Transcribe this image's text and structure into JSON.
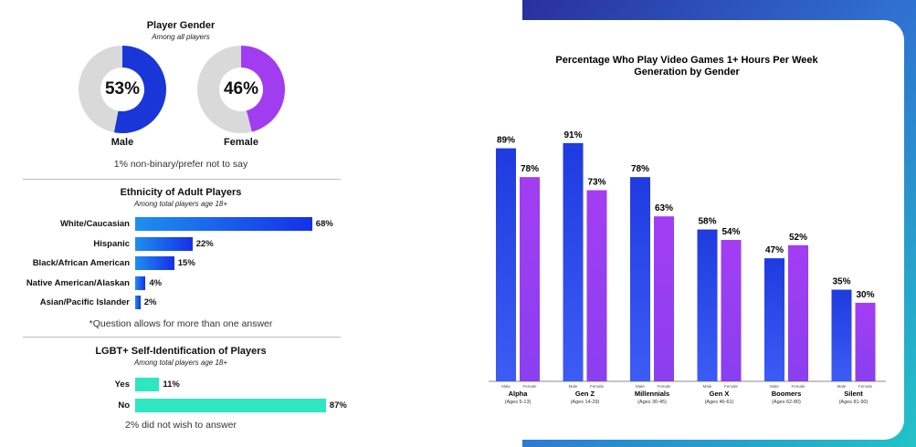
{
  "colors": {
    "male_blue": "#1a36d9",
    "female_purple": "#a23cf0",
    "donut_gray": "#d9d9d9",
    "ethnicity_blue": "#1e8ff0",
    "lgbt_teal": "#2ee6c2"
  },
  "gender": {
    "title": "Player Gender",
    "subtitle": "Among all players",
    "male": {
      "value": 53,
      "label_pct": "53%",
      "label": "Male"
    },
    "female": {
      "value": 46,
      "label_pct": "46%",
      "label": "Female"
    },
    "note": "1% non-binary/prefer not to say"
  },
  "ethnicity": {
    "title": "Ethnicity of Adult Players",
    "subtitle": "Among total players age 18+",
    "rows": [
      {
        "label": "White/Caucasian",
        "value": 68,
        "label_pct": "68%"
      },
      {
        "label": "Hispanic",
        "value": 22,
        "label_pct": "22%"
      },
      {
        "label": "Black/African American",
        "value": 15,
        "label_pct": "15%"
      },
      {
        "label": "Native American/Alaskan",
        "value": 4,
        "label_pct": "4%"
      },
      {
        "label": "Asian/Pacific Islander",
        "value": 2,
        "label_pct": "2%"
      }
    ],
    "note": "*Question allows for more than one answer"
  },
  "lgbt": {
    "title": "LGBT+ Self-Identification of Players",
    "subtitle": "Among total players age 18+",
    "rows": [
      {
        "label": "Yes",
        "value": 11,
        "label_pct": "11%"
      },
      {
        "label": "No",
        "value": 87,
        "label_pct": "87%"
      }
    ],
    "note": "2% did not wish to answer"
  },
  "chart_data": {
    "type": "bar",
    "title": "Percentage Who Play Video Games 1+ Hours Per Week",
    "subtitle": "Generation by Gender",
    "ylim": [
      0,
      100
    ],
    "categories": [
      "Alpha",
      "Gen Z",
      "Millennials",
      "Gen X",
      "Boomers",
      "Silent"
    ],
    "category_ages": [
      "(Ages 5-13)",
      "(Ages 14-29)",
      "(Ages 30-45)",
      "(Ages 46-61)",
      "(Ages 62-80)",
      "(Ages 81-90)"
    ],
    "series": [
      {
        "name": "Male",
        "values": [
          89,
          91,
          78,
          58,
          47,
          35
        ]
      },
      {
        "name": "Female",
        "values": [
          78,
          73,
          63,
          54,
          52,
          30
        ]
      }
    ],
    "value_labels": {
      "Male": [
        "89%",
        "91%",
        "78%",
        "58%",
        "47%",
        "35%"
      ],
      "Female": [
        "78%",
        "73%",
        "63%",
        "54%",
        "52%",
        "30%"
      ]
    },
    "grid": false,
    "legend": "none"
  }
}
